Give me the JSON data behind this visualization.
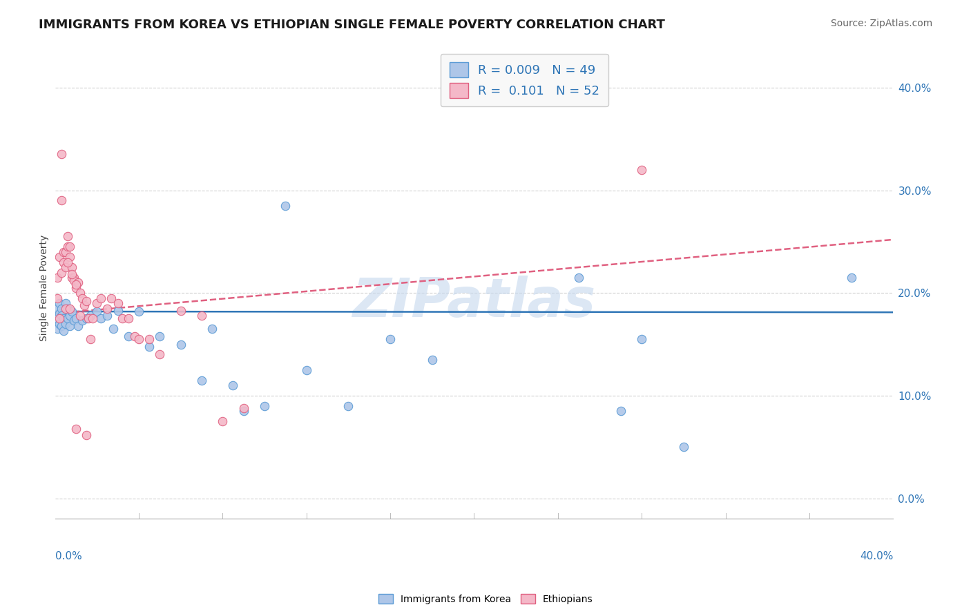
{
  "title": "IMMIGRANTS FROM KOREA VS ETHIOPIAN SINGLE FEMALE POVERTY CORRELATION CHART",
  "source": "Source: ZipAtlas.com",
  "ylabel": "Single Female Poverty",
  "xlim": [
    0.0,
    0.4
  ],
  "ylim": [
    -0.02,
    0.43
  ],
  "yticks": [
    0.0,
    0.1,
    0.2,
    0.3,
    0.4
  ],
  "series": [
    {
      "name": "Immigrants from Korea",
      "R": 0.009,
      "N": 49,
      "color": "#aec6e8",
      "edge_color": "#5b9bd5",
      "x": [
        0.001,
        0.001,
        0.001,
        0.002,
        0.002,
        0.002,
        0.003,
        0.003,
        0.003,
        0.004,
        0.004,
        0.005,
        0.005,
        0.006,
        0.006,
        0.007,
        0.007,
        0.008,
        0.009,
        0.01,
        0.011,
        0.013,
        0.015,
        0.017,
        0.02,
        0.022,
        0.025,
        0.028,
        0.03,
        0.035,
        0.04,
        0.045,
        0.05,
        0.06,
        0.07,
        0.085,
        0.1,
        0.12,
        0.14,
        0.16,
        0.18,
        0.075,
        0.09,
        0.11,
        0.25,
        0.28,
        0.38,
        0.27,
        0.3
      ],
      "y": [
        0.185,
        0.175,
        0.165,
        0.19,
        0.18,
        0.17,
        0.185,
        0.178,
        0.168,
        0.175,
        0.163,
        0.19,
        0.17,
        0.185,
        0.175,
        0.178,
        0.168,
        0.182,
        0.173,
        0.175,
        0.168,
        0.173,
        0.175,
        0.178,
        0.182,
        0.175,
        0.178,
        0.165,
        0.183,
        0.158,
        0.182,
        0.148,
        0.158,
        0.15,
        0.115,
        0.11,
        0.09,
        0.125,
        0.09,
        0.155,
        0.135,
        0.165,
        0.085,
        0.285,
        0.215,
        0.155,
        0.215,
        0.085,
        0.05
      ],
      "trend_color": "#2e75b6",
      "trend_style": "-",
      "trend_intercept": 0.182,
      "trend_slope": -0.002
    },
    {
      "name": "Ethiopians",
      "R": 0.101,
      "N": 52,
      "color": "#f4b8c8",
      "edge_color": "#e06080",
      "x": [
        0.001,
        0.001,
        0.002,
        0.002,
        0.003,
        0.003,
        0.004,
        0.004,
        0.005,
        0.005,
        0.006,
        0.006,
        0.007,
        0.007,
        0.008,
        0.008,
        0.009,
        0.009,
        0.01,
        0.011,
        0.012,
        0.013,
        0.014,
        0.015,
        0.016,
        0.017,
        0.018,
        0.02,
        0.022,
        0.025,
        0.027,
        0.03,
        0.032,
        0.035,
        0.038,
        0.04,
        0.045,
        0.05,
        0.06,
        0.07,
        0.08,
        0.09,
        0.003,
        0.005,
        0.006,
        0.007,
        0.008,
        0.01,
        0.012,
        0.015,
        0.28,
        0.01
      ],
      "y": [
        0.215,
        0.195,
        0.235,
        0.175,
        0.29,
        0.22,
        0.23,
        0.24,
        0.225,
        0.24,
        0.245,
        0.255,
        0.245,
        0.235,
        0.215,
        0.225,
        0.215,
        0.212,
        0.205,
        0.21,
        0.2,
        0.195,
        0.188,
        0.192,
        0.175,
        0.155,
        0.175,
        0.19,
        0.195,
        0.185,
        0.195,
        0.19,
        0.175,
        0.175,
        0.158,
        0.155,
        0.155,
        0.14,
        0.183,
        0.178,
        0.075,
        0.088,
        0.335,
        0.185,
        0.23,
        0.185,
        0.218,
        0.208,
        0.178,
        0.062,
        0.32,
        0.068
      ],
      "trend_color": "#e06080",
      "trend_style": "--",
      "trend_intercept": 0.18,
      "trend_slope": 0.18
    }
  ],
  "legend_box_color": "#f8f8f8",
  "grid_color": "#d0d0d0",
  "watermark": "ZIPatlas",
  "watermark_color": "#c5d8ee",
  "title_fontsize": 13,
  "source_fontsize": 10,
  "label_fontsize": 10,
  "tick_fontsize": 11
}
